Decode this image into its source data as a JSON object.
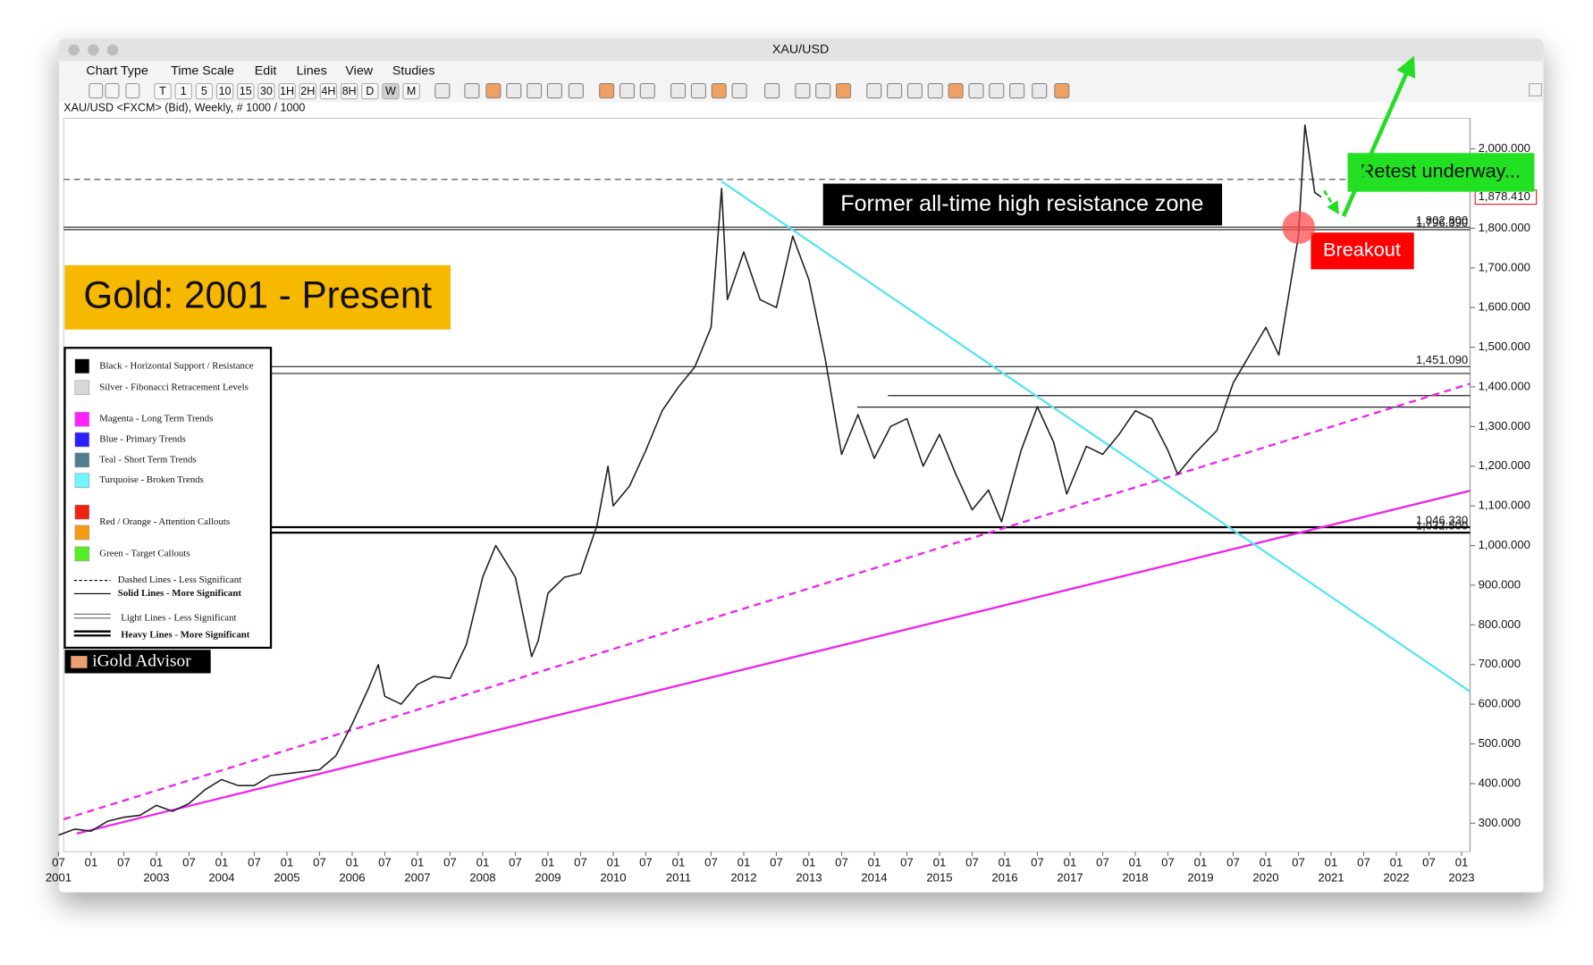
{
  "window": {
    "title": "XAU/USD",
    "menu": [
      "Chart Type",
      "Time Scale",
      "Edit",
      "Lines",
      "View",
      "Studies"
    ],
    "toolbar": [
      "T",
      "1",
      "5",
      "10",
      "15",
      "30",
      "1H",
      "2H",
      "4H",
      "8H",
      "D",
      "W",
      "M"
    ],
    "info": "XAU/USD <FXCM> (Bid), Weekly, # 1000 / 1000"
  },
  "chart_data": {
    "type": "line",
    "title": "Gold: 2001 - Present",
    "annotations": {
      "resistance": "Former all-time high resistance zone",
      "breakout": "Breakout",
      "retest": "Retest underway..."
    },
    "brand": "iGold Advisor",
    "x": [
      2001.5,
      2001.75,
      2002.0,
      2002.25,
      2002.5,
      2002.75,
      2003.0,
      2003.25,
      2003.5,
      2003.75,
      2004.0,
      2004.25,
      2004.5,
      2004.75,
      2005.0,
      2005.25,
      2005.5,
      2005.75,
      2006.0,
      2006.25,
      2006.4,
      2006.5,
      2006.75,
      2007.0,
      2007.25,
      2007.5,
      2007.75,
      2008.0,
      2008.2,
      2008.5,
      2008.75,
      2008.85,
      2009.0,
      2009.25,
      2009.5,
      2009.75,
      2009.92,
      2010.0,
      2010.25,
      2010.5,
      2010.75,
      2011.0,
      2011.25,
      2011.5,
      2011.66,
      2011.75,
      2012.0,
      2012.25,
      2012.5,
      2012.75,
      2013.0,
      2013.25,
      2013.5,
      2013.75,
      2014.0,
      2014.25,
      2014.5,
      2014.75,
      2015.0,
      2015.25,
      2015.5,
      2015.75,
      2015.95,
      2016.25,
      2016.5,
      2016.75,
      2016.95,
      2017.25,
      2017.5,
      2017.75,
      2018.0,
      2018.25,
      2018.5,
      2018.65,
      2018.9,
      2019.25,
      2019.5,
      2019.75,
      2020.0,
      2020.2,
      2020.5,
      2020.6,
      2020.75,
      2020.85
    ],
    "series": [
      {
        "name": "XAU/USD",
        "color": "#222222",
        "values": [
          270,
          285,
          280,
          305,
          315,
          320,
          345,
          330,
          350,
          385,
          410,
          395,
          395,
          420,
          425,
          430,
          435,
          470,
          550,
          640,
          700,
          620,
          600,
          650,
          670,
          665,
          750,
          920,
          1000,
          920,
          720,
          760,
          880,
          920,
          930,
          1050,
          1200,
          1100,
          1150,
          1240,
          1340,
          1400,
          1450,
          1550,
          1900,
          1620,
          1740,
          1620,
          1600,
          1780,
          1670,
          1470,
          1230,
          1330,
          1220,
          1300,
          1320,
          1200,
          1280,
          1180,
          1090,
          1140,
          1060,
          1240,
          1350,
          1260,
          1130,
          1250,
          1230,
          1280,
          1340,
          1320,
          1240,
          1180,
          1230,
          1290,
          1410,
          1480,
          1550,
          1480,
          1780,
          2060,
          1890,
          1878.41
        ]
      }
    ],
    "xlim": [
      2001.58,
      2023.13
    ],
    "ylim": [
      228,
      2077
    ],
    "yticks": [
      {
        "value": 300,
        "label": "300.000"
      },
      {
        "value": 400,
        "label": "400.000"
      },
      {
        "value": 500,
        "label": "500.000"
      },
      {
        "value": 600,
        "label": "600.000"
      },
      {
        "value": 700,
        "label": "700.000"
      },
      {
        "value": 800,
        "label": "800.000"
      },
      {
        "value": 900,
        "label": "900.000"
      },
      {
        "value": 1000,
        "label": "1,000.000"
      },
      {
        "value": 1100,
        "label": "1,100.000"
      },
      {
        "value": 1200,
        "label": "1,200.000"
      },
      {
        "value": 1300,
        "label": "1,300.000"
      },
      {
        "value": 1400,
        "label": "1,400.000"
      },
      {
        "value": 1500,
        "label": "1,500.000"
      },
      {
        "value": 1600,
        "label": "1,600.000"
      },
      {
        "value": 1700,
        "label": "1,700.000"
      },
      {
        "value": 1800,
        "label": "1,800.000"
      },
      {
        "value": 1900,
        "label": "1,900.000"
      },
      {
        "value": 2000,
        "label": "2,000.000"
      }
    ],
    "xticks": [
      {
        "value": 2001.5,
        "label": "07"
      },
      {
        "value": 2002,
        "label": "01"
      },
      {
        "value": 2002.5,
        "label": "07"
      },
      {
        "value": 2003,
        "label": "01"
      },
      {
        "value": 2003.5,
        "label": "07"
      },
      {
        "value": 2004,
        "label": "01"
      },
      {
        "value": 2004.5,
        "label": "07"
      },
      {
        "value": 2005,
        "label": "01"
      },
      {
        "value": 2005.5,
        "label": "07"
      },
      {
        "value": 2006,
        "label": "01"
      },
      {
        "value": 2006.5,
        "label": "07"
      },
      {
        "value": 2007,
        "label": "01"
      },
      {
        "value": 2007.5,
        "label": "07"
      },
      {
        "value": 2008,
        "label": "01"
      },
      {
        "value": 2008.5,
        "label": "07"
      },
      {
        "value": 2009,
        "label": "01"
      },
      {
        "value": 2009.5,
        "label": "07"
      },
      {
        "value": 2010,
        "label": "01"
      },
      {
        "value": 2010.5,
        "label": "07"
      },
      {
        "value": 2011,
        "label": "01"
      },
      {
        "value": 2011.5,
        "label": "07"
      },
      {
        "value": 2012,
        "label": "01"
      },
      {
        "value": 2012.5,
        "label": "07"
      },
      {
        "value": 2013,
        "label": "01"
      },
      {
        "value": 2013.5,
        "label": "07"
      },
      {
        "value": 2014,
        "label": "01"
      },
      {
        "value": 2014.5,
        "label": "07"
      },
      {
        "value": 2015,
        "label": "01"
      },
      {
        "value": 2015.5,
        "label": "07"
      },
      {
        "value": 2016,
        "label": "01"
      },
      {
        "value": 2016.5,
        "label": "07"
      },
      {
        "value": 2017,
        "label": "01"
      },
      {
        "value": 2017.5,
        "label": "07"
      },
      {
        "value": 2018,
        "label": "01"
      },
      {
        "value": 2018.5,
        "label": "07"
      },
      {
        "value": 2019,
        "label": "01"
      },
      {
        "value": 2019.5,
        "label": "07"
      },
      {
        "value": 2020,
        "label": "01"
      },
      {
        "value": 2020.5,
        "label": "07"
      },
      {
        "value": 2021,
        "label": "01"
      },
      {
        "value": 2021.5,
        "label": "07"
      },
      {
        "value": 2022,
        "label": "01"
      },
      {
        "value": 2022.5,
        "label": "07"
      },
      {
        "value": 2023,
        "label": "01"
      }
    ],
    "year_labels": [
      {
        "value": 2001.5,
        "label": "2001"
      },
      2003,
      2004,
      2005,
      2006,
      2007,
      2008,
      2009,
      2010,
      2011,
      2012,
      2013,
      2014,
      2015,
      2016,
      2017,
      2018,
      2019,
      2020,
      2021,
      2022,
      2023
    ],
    "levels": [
      {
        "value": 1923,
        "style": "dashed"
      },
      {
        "value": 1802.8,
        "label": "1,802.800",
        "style": "solid"
      },
      {
        "value": 1796.39,
        "label": "1,796.390",
        "style": "solid"
      },
      {
        "value": 1451.09,
        "label": "1,451.090",
        "style": "solid"
      },
      {
        "value": 1434,
        "style": "solid"
      },
      {
        "value": 1378,
        "start": 2014.21,
        "style": "solid"
      },
      {
        "value": 1349,
        "start": 2013.74,
        "style": "solid"
      },
      {
        "value": 1046.33,
        "label": "1,046.330",
        "style": "heavy"
      },
      {
        "value": 1032.5,
        "label": "1,032.500",
        "style": "heavy"
      }
    ],
    "current": {
      "value": 1878.41,
      "label": "1,878.410",
      "color": "#e02020"
    },
    "trendlines": [
      {
        "x": [
          2001.58,
          2023.13
        ],
        "y": [
          310,
          1408
        ],
        "color": "#ee22ee",
        "style": "dashed"
      },
      {
        "x": [
          2001.78,
          2023.13
        ],
        "y": [
          274,
          1138
        ],
        "color": "#ee22ee",
        "style": "solid"
      },
      {
        "x": [
          2011.66,
          2023.13
        ],
        "y": [
          1918,
          632
        ],
        "color": "#55e6ee",
        "style": "solid"
      }
    ],
    "legend": [
      {
        "label": "Black - Horizontal Support / Resistance",
        "colors": [
          "#000000"
        ]
      },
      {
        "label": "Silver - Fibonacci Retracement Levels",
        "colors": [
          "#d8d8d8"
        ]
      },
      {
        "label": "Magenta - Long Term Trends",
        "colors": [
          "#ff22ff"
        ]
      },
      {
        "label": "Blue - Primary Trends",
        "colors": [
          "#2a1fff"
        ]
      },
      {
        "label": "Teal - Short Term Trends",
        "colors": [
          "#4d7f8c"
        ]
      },
      {
        "label": "Turquoise - Broken Trends",
        "colors": [
          "#6ff6ff"
        ]
      },
      {
        "label": "Red / Orange - Attention Callouts",
        "colors": [
          "#ee2211",
          "#f39c12"
        ]
      },
      {
        "label": "Green - Target Callouts",
        "colors": [
          "#55ee22"
        ]
      }
    ],
    "line_legend": [
      {
        "label": "Dashed Lines - Less Significant",
        "style": "dashed"
      },
      {
        "label": "Solid Lines - More Significant",
        "style": "solid"
      },
      {
        "label": "Light Lines - Less Significant",
        "style": "light"
      },
      {
        "label": "Heavy Lines - More Significant",
        "style": "heavy"
      }
    ]
  }
}
